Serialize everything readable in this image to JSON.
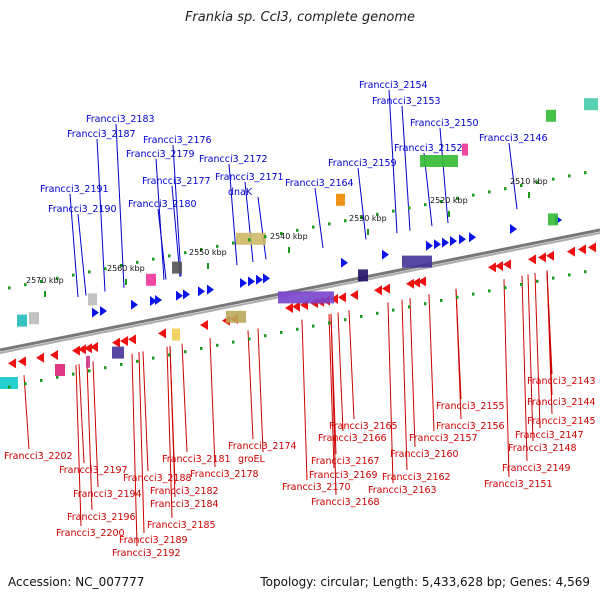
{
  "title": "Frankia sp. CcI3, complete genome",
  "footer": {
    "accession": "Accession: NC_007777",
    "summary": "Topology: circular; Length: 5,433,628 bp; Genes: 4,569"
  },
  "colors": {
    "forward_label": "#0000cc",
    "reverse_label": "#cc0000",
    "forward_gene": "#0a14e6",
    "reverse_gene": "#ee1111",
    "tick": "#1a9a1a",
    "backbone": "#777777"
  },
  "scale_ticks": [
    {
      "label": "2570 kbp"
    },
    {
      "label": "2560 kbp"
    },
    {
      "label": "2550 kbp"
    },
    {
      "label": "2540 kbp"
    },
    {
      "label": "2530 kbp"
    },
    {
      "label": "2520 kbp"
    },
    {
      "label": "2510 kbp"
    }
  ],
  "forward_labels": [
    "Francci3_2154",
    "Francci3_2153",
    "Francci3_2150",
    "Francci3_2146",
    "Francci3_2152",
    "Francci3_2183",
    "Francci3_2187",
    "Francci3_2176",
    "Francci3_2179",
    "Francci3_2159",
    "Francci3_2172",
    "Francci3_2177",
    "Francci3_2171",
    "Francci3_2164",
    "Francci3_2191",
    "dnaK",
    "Francci3_2180",
    "Francci3_2190"
  ],
  "reverse_labels": [
    "Francci3_2143",
    "Francci3_2144",
    "Francci3_2155",
    "Francci3_2145",
    "Francci3_2156",
    "Francci3_2165",
    "Francci3_2147",
    "Francci3_2166",
    "Francci3_2157",
    "Francci3_2174",
    "Francci3_2148",
    "Francci3_2202",
    "Francci3_2181",
    "groEL",
    "Francci3_2160",
    "Francci3_2167",
    "Francci3_2149",
    "Francci3_2197",
    "Francci3_2188",
    "Francci3_2178",
    "Francci3_2169",
    "Francci3_2162",
    "Francci3_2170",
    "Francci3_2163",
    "Francci3_2151",
    "Francci3_2182",
    "Francci3_2194",
    "Francci3_2168",
    "Francci3_2184",
    "Francci3_2196",
    "Francci3_2185",
    "Francci3_2200",
    "Francci3_2189",
    "Francci3_2192"
  ]
}
